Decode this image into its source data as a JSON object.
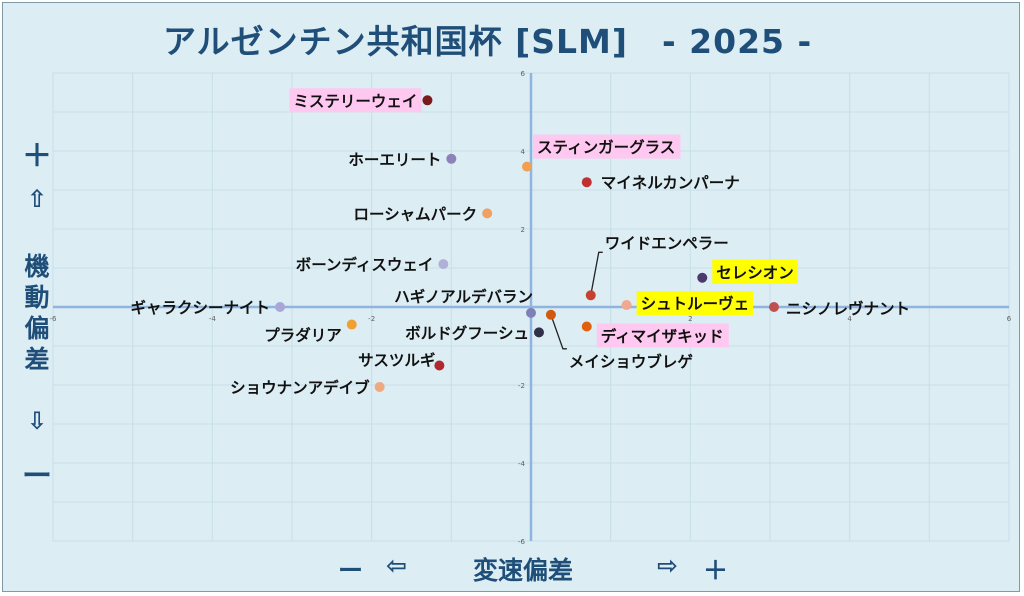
{
  "chart_data": {
    "type": "scatter",
    "title": "アルゼンチン共和国杯 [SLM]　- 2025 -",
    "xlabel": "変速偏差",
    "ylabel": "機動偏差",
    "xlim": [
      -6,
      6
    ],
    "ylim": [
      -6,
      6
    ],
    "x_ticks": [
      "-6",
      "-4",
      "-2",
      "2",
      "4",
      "6"
    ],
    "y_ticks": [
      "6",
      "4",
      "2",
      "-2",
      "-4",
      "-6"
    ],
    "y_axis_labels": {
      "plus": "＋",
      "up_arrow": "⇧",
      "text": "機動偏差",
      "down_arrow": "⇩",
      "minus": "ー"
    },
    "x_axis_labels": {
      "minus": "ー",
      "left_arrow": "⇦",
      "text": "変速偏差",
      "right_arrow": "⇨",
      "plus": "＋"
    },
    "points": [
      {
        "name": "ミステリーウェイ",
        "x": -1.3,
        "y": 5.3,
        "color": "#7a1a1a",
        "highlight": "#ffc8f0"
      },
      {
        "name": "ホーエリート",
        "x": -1.0,
        "y": 3.8,
        "color": "#8c82b8",
        "highlight": null
      },
      {
        "name": "スティンガーグラス",
        "x": -0.05,
        "y": 3.6,
        "color": "#f0a050",
        "highlight": "#ffc8f0"
      },
      {
        "name": "マイネルカンパーナ",
        "x": 0.7,
        "y": 3.2,
        "color": "#c03030",
        "highlight": null
      },
      {
        "name": "ローシャムパーク",
        "x": -0.55,
        "y": 2.4,
        "color": "#f0a060",
        "highlight": null
      },
      {
        "name": "ボーンディスウェイ",
        "x": -1.1,
        "y": 1.1,
        "color": "#b0b0d8",
        "highlight": null
      },
      {
        "name": "ワイドエンペラー",
        "x": 0.75,
        "y": 0.3,
        "color": "#c84030",
        "highlight": null
      },
      {
        "name": "セレシオン",
        "x": 2.15,
        "y": 0.75,
        "color": "#4a3a6e",
        "highlight": "#ffff00"
      },
      {
        "name": "ハギノアルデバラン",
        "x": 0.0,
        "y": -0.15,
        "color": "#8080b8",
        "highlight": null
      },
      {
        "name": "シュトルーヴェ",
        "x": 1.2,
        "y": 0.05,
        "color": "#f0a890",
        "highlight": "#ffff00"
      },
      {
        "name": "ニシノレヴナント",
        "x": 3.05,
        "y": 0.0,
        "color": "#c05050",
        "highlight": null
      },
      {
        "name": "ギャラクシーナイト",
        "x": -3.15,
        "y": 0.0,
        "color": "#a8a8d8",
        "highlight": null
      },
      {
        "name": "プラダリア",
        "x": -2.25,
        "y": -0.45,
        "color": "#f0a030",
        "highlight": null
      },
      {
        "name": "ボルドグフーシュ",
        "x": 0.1,
        "y": -0.65,
        "color": "#303048",
        "highlight": null
      },
      {
        "name": "メイショウブレゲ",
        "x": 0.25,
        "y": -0.2,
        "color": "#d05a10",
        "highlight": null
      },
      {
        "name": "ディマイザキッド",
        "x": 0.7,
        "y": -0.5,
        "color": "#e06010",
        "highlight": "#ffc8f0"
      },
      {
        "name": "サスツルギ",
        "x": -1.15,
        "y": -1.5,
        "color": "#b02830",
        "highlight": null
      },
      {
        "name": "ショウナンアデイブ",
        "x": -1.9,
        "y": -2.05,
        "color": "#f0a880",
        "highlight": null
      }
    ],
    "grid": true,
    "legend": "none"
  }
}
